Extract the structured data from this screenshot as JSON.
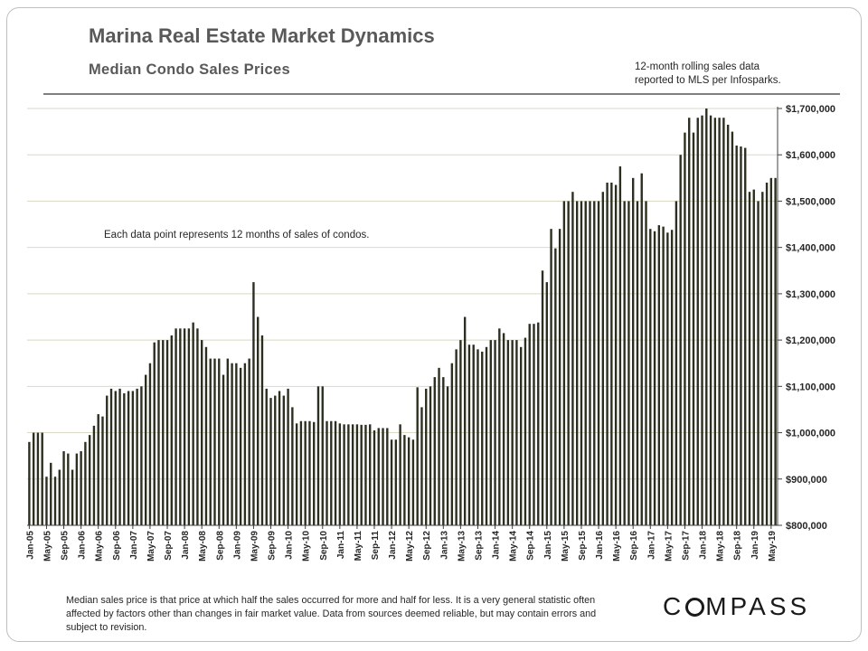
{
  "header": {
    "title": "Marina Real Estate Market Dynamics",
    "subtitle": "Median  Condo  Sales  Prices",
    "note_line1": "12-month rolling sales data",
    "note_line2": "reported to MLS per Infosparks."
  },
  "annotation": "Each  data  point  represents 12 months of sales of condos.",
  "footer": "Median sales price is that price at which half the sales occurred for more and half for less. It is a very general statistic often affected by factors other than changes in fair market value. Data from sources deemed reliable, but may contain errors and subject to revision.",
  "logo": {
    "text_before": "C",
    "text_after": "MPASS"
  },
  "colors": {
    "bar": "#2b2f1f",
    "grid": "#d9d9c4",
    "axis": "#404040",
    "title": "#595959"
  },
  "chart_data": {
    "type": "bar",
    "title": "Median Condo Sales Prices",
    "xlabel": "",
    "ylabel": "",
    "ylim": [
      800000,
      1700000
    ],
    "yticks": [
      800000,
      900000,
      1000000,
      1100000,
      1200000,
      1300000,
      1400000,
      1500000,
      1600000,
      1700000
    ],
    "ytick_labels": [
      "$800,000",
      "$900,000",
      "$1,000,000",
      "$1,100,000",
      "$1,200,000",
      "$1,300,000",
      "$1,400,000",
      "$1,500,000",
      "$1,600,000",
      "$1,700,000"
    ],
    "grid": "horizontal",
    "x_tick_labels": [
      "Jan-05",
      "May-05",
      "Sep-05",
      "Jan-06",
      "May-06",
      "Sep-06",
      "Jan-07",
      "May-07",
      "Sep-07",
      "Jan-08",
      "May-08",
      "Sep-08",
      "Jan-09",
      "May-09",
      "Sep-09",
      "Jan-10",
      "May-10",
      "Sep-10",
      "Jan-11",
      "May-11",
      "Sep-11",
      "Jan-12",
      "May-12",
      "Sep-12",
      "Jan-13",
      "May-13",
      "Sep-13",
      "Jan-14",
      "May-14",
      "Sep-14",
      "Jan-15",
      "May-15",
      "Sep-15",
      "Jan-16",
      "May-16",
      "Sep-16",
      "Jan-17",
      "May-17",
      "Sep-17",
      "Jan-18",
      "May-18",
      "Sep-18",
      "Jan-19",
      "May-19"
    ],
    "x_tick_every": 4,
    "values": [
      980000,
      1000000,
      1000000,
      1000000,
      905000,
      935000,
      905000,
      920000,
      960000,
      955000,
      920000,
      955000,
      960000,
      980000,
      995000,
      1015000,
      1040000,
      1035000,
      1080000,
      1095000,
      1090000,
      1095000,
      1085000,
      1090000,
      1090000,
      1095000,
      1100000,
      1125000,
      1150000,
      1195000,
      1200000,
      1200000,
      1200000,
      1210000,
      1225000,
      1225000,
      1225000,
      1225000,
      1238000,
      1225000,
      1200000,
      1185000,
      1160000,
      1160000,
      1160000,
      1125000,
      1160000,
      1150000,
      1150000,
      1140000,
      1150000,
      1160000,
      1325000,
      1250000,
      1210000,
      1095000,
      1075000,
      1080000,
      1090000,
      1080000,
      1095000,
      1055000,
      1020000,
      1025000,
      1025000,
      1025000,
      1023000,
      1100000,
      1100000,
      1025000,
      1025000,
      1025000,
      1020000,
      1018000,
      1018000,
      1018000,
      1018000,
      1017000,
      1017000,
      1018000,
      1005000,
      1010000,
      1010000,
      1010000,
      985000,
      985000,
      1018000,
      995000,
      990000,
      985000,
      1098000,
      1055000,
      1095000,
      1100000,
      1120000,
      1140000,
      1120000,
      1100000,
      1150000,
      1180000,
      1200000,
      1250000,
      1190000,
      1190000,
      1180000,
      1175000,
      1185000,
      1200000,
      1200000,
      1225000,
      1215000,
      1200000,
      1200000,
      1200000,
      1185000,
      1205000,
      1235000,
      1235000,
      1238000,
      1350000,
      1325000,
      1440000,
      1398000,
      1440000,
      1500000,
      1500000,
      1520000,
      1500000,
      1500000,
      1500000,
      1500000,
      1500000,
      1500000,
      1520000,
      1540000,
      1540000,
      1535000,
      1575000,
      1500000,
      1500000,
      1550000,
      1500000,
      1560000,
      1500000,
      1440000,
      1435000,
      1448000,
      1445000,
      1432000,
      1438000,
      1500000,
      1600000,
      1648000,
      1680000,
      1648000,
      1680000,
      1685000,
      1700000,
      1685000,
      1680000,
      1680000,
      1680000,
      1665000,
      1650000,
      1620000,
      1618000,
      1615000,
      1520000,
      1525000,
      1500000,
      1520000,
      1540000,
      1550000,
      1550000
    ]
  }
}
